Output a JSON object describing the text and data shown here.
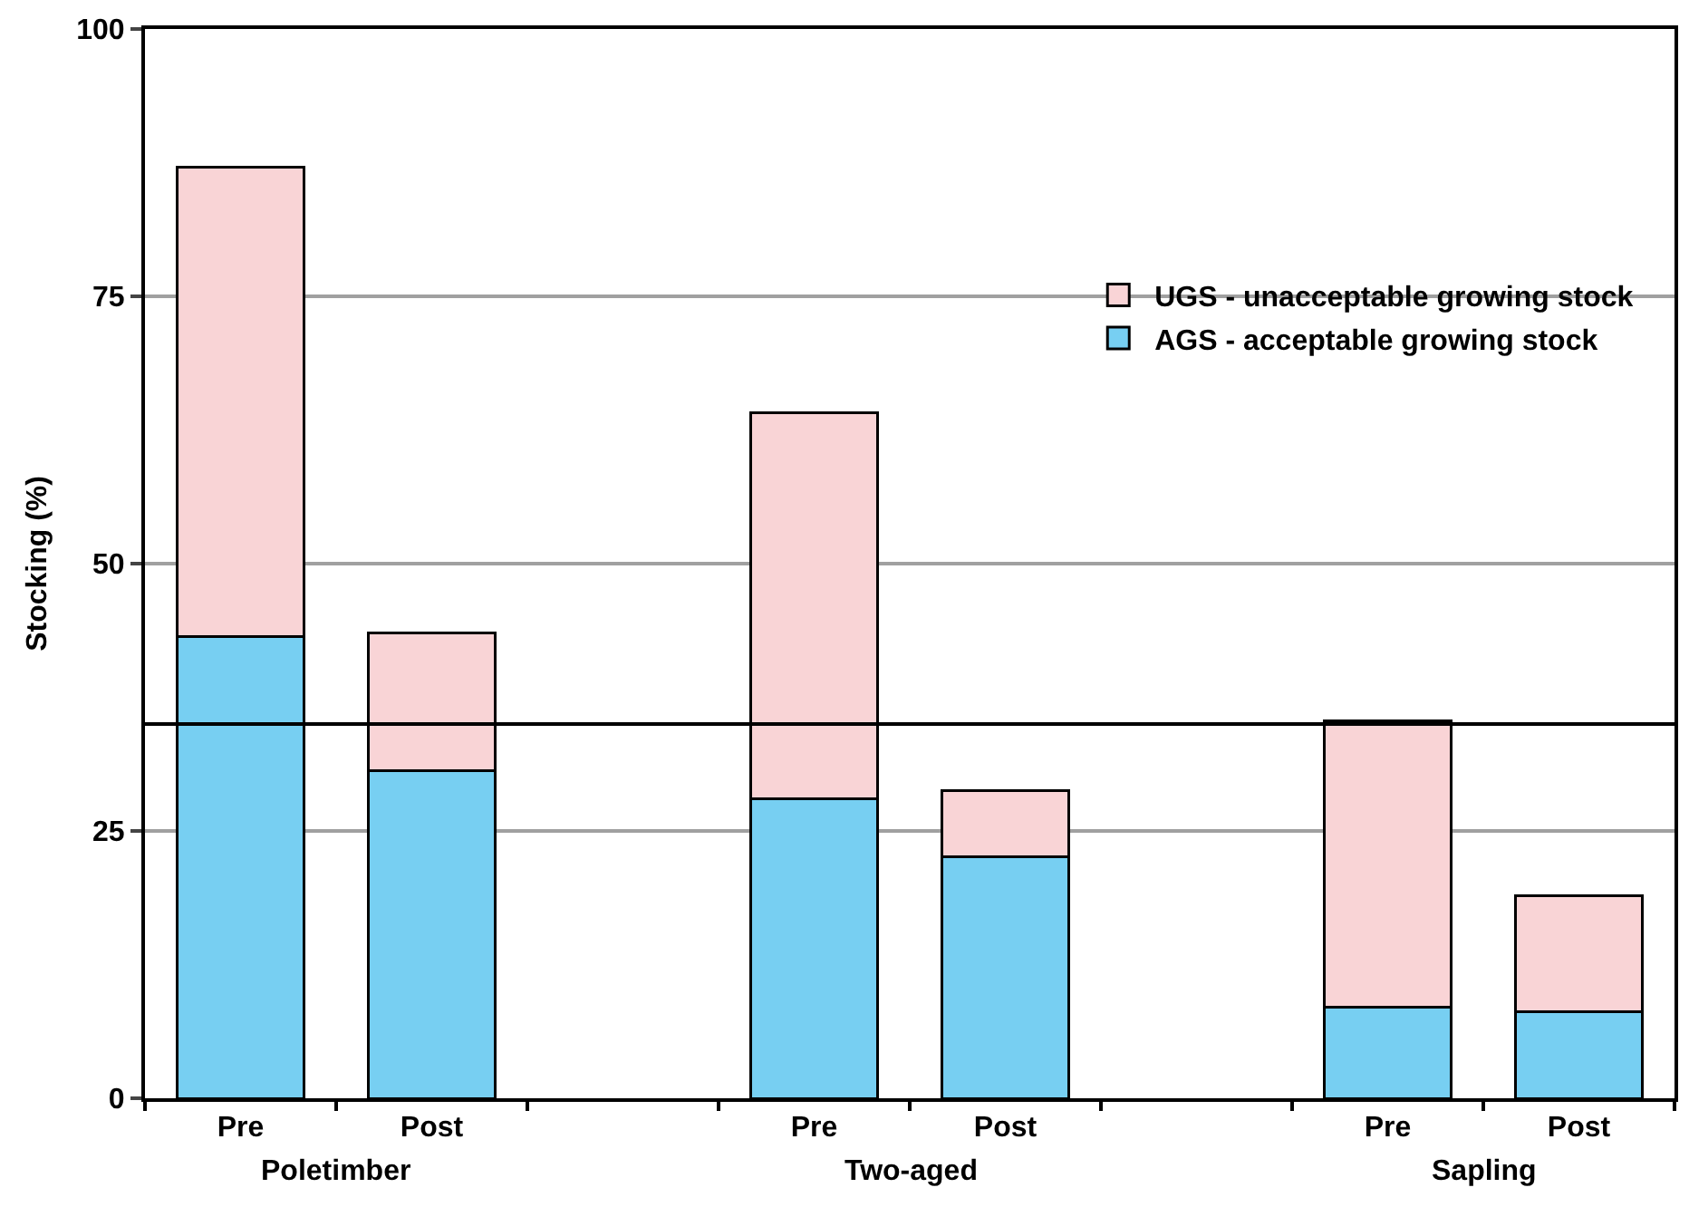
{
  "chart_data": {
    "type": "bar",
    "stacked": true,
    "ylabel": "Stocking (%)",
    "categories": [
      "Pre",
      "Post",
      null,
      "Pre",
      "Post",
      null,
      "Pre",
      "Post"
    ],
    "series": [
      {
        "name": "AGS - acceptable growing stock",
        "color": "#77cff2",
        "values": [
          43.2,
          30.6,
          null,
          28.0,
          22.6,
          null,
          8.5,
          8.1
        ]
      },
      {
        "name": "UGS - unacceptable growing stock",
        "color": "#f9d4d6",
        "values": [
          43.9,
          12.9,
          null,
          36.1,
          6.2,
          null,
          26.8,
          10.8
        ]
      }
    ],
    "ylim": [
      0,
      100
    ],
    "yticks": [
      0,
      25,
      50,
      75,
      100
    ],
    "grid": "y",
    "legend": "top right",
    "ref_lines": [
      {
        "axis": "y",
        "value": 35,
        "color": "#000000"
      }
    ],
    "annotations": [
      "Poletimber",
      "Two-aged",
      "Sapling"
    ]
  }
}
